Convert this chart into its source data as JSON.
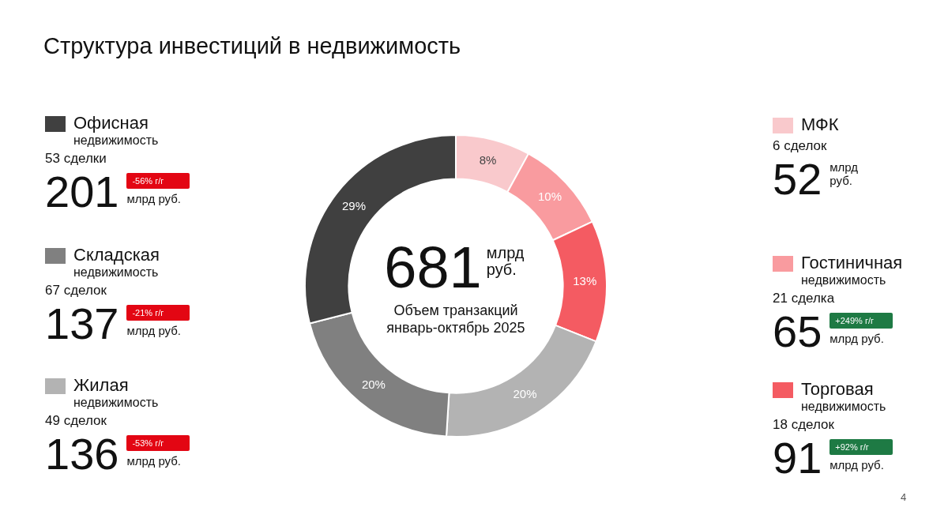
{
  "chart_data": {
    "type": "donut",
    "title": "Структура инвестиций в недвижимость",
    "categories": [
      "МФК",
      "Гостиничная недвижимость",
      "Торговая недвижимость",
      "Жилая недвижимость",
      "Складская недвижимость",
      "Офисная недвижимость"
    ],
    "values": [
      8,
      10,
      13,
      20,
      20,
      29
    ],
    "value_labels": [
      "8%",
      "10%",
      "13%",
      "20%",
      "20%",
      "29%"
    ],
    "colors": [
      "#f9c9cc",
      "#f99b9f",
      "#f45b62",
      "#b3b3b3",
      "#808080",
      "#404040"
    ],
    "legend": "top right",
    "annotations": [
      "681",
      "млрд руб.",
      "Объем транзакций январь-октябрь 2025",
      "4",
      {
        "text": "52",
        "x": "МФК"
      },
      {
        "text": "млрд руб.",
        "x": "МФК"
      },
      {
        "text": "6 сделок",
        "x": "МФК"
      },
      {
        "text": "65",
        "x": "Гостиничная недвижимость"
      },
      {
        "text": "млрд руб.",
        "x": "Гостиничная недвижимость"
      },
      {
        "text": "21 сделка",
        "x": "Гостиничная недвижимость"
      },
      {
        "text": "+249% г/г",
        "x": "Гостиничная недвижимость"
      },
      {
        "text": "91",
        "x": "Торговая недвижимость"
      },
      {
        "text": "млрд руб.",
        "x": "Торговая недвижимость"
      },
      {
        "text": "18 сделок",
        "x": "Торговая недвижимость"
      },
      {
        "text": "+92% г/г",
        "x": "Торговая недвижимость"
      },
      {
        "text": "136",
        "x": "Жилая недвижимость"
      },
      {
        "text": "млрд руб.",
        "x": "Жилая недвижимость"
      },
      {
        "text": "49 сделок",
        "x": "Жилая недвижимость"
      },
      {
        "text": "-53% г/г",
        "x": "Жилая недвижимость"
      },
      {
        "text": "137",
        "x": "Складская недвижимость"
      },
      {
        "text": "млрд руб.",
        "x": "Складская недвижимость"
      },
      {
        "text": "67 сделок",
        "x": "Складская недвижимость"
      },
      {
        "text": "-21% г/г",
        "x": "Складская недвижимость"
      },
      {
        "text": "201",
        "x": "Офисная недвижимость"
      },
      {
        "text": "млрд руб.",
        "x": "Офисная недвижимость"
      },
      {
        "text": "53 сделки",
        "x": "Офисная недвижимость"
      },
      {
        "text": "-56% г/г",
        "x": "Офисная недвижимость"
      }
    ]
  }
}
